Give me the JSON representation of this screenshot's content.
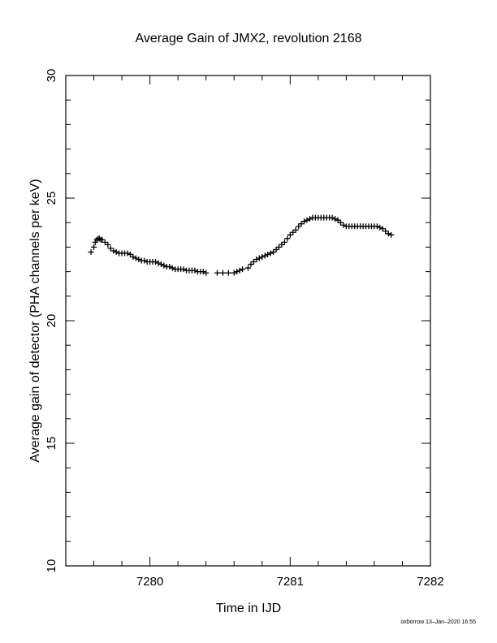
{
  "chart_data": {
    "type": "scatter",
    "title": "Average Gain of JMX2, revolution 2168",
    "xlabel": "Time in IJD",
    "ylabel": "Average gain of detector (PHA channels per keV)",
    "xlim": [
      7279.4,
      7282.0
    ],
    "ylim": [
      10,
      30
    ],
    "xticks": [
      7280,
      7281,
      7282
    ],
    "yticks": [
      10,
      15,
      20,
      25,
      30
    ],
    "x_minor_step": 0.2,
    "y_minor_step": 1,
    "grid": false,
    "legend": "none",
    "marker": "+",
    "color": "#000000",
    "x": [
      7279.58,
      7279.6,
      7279.61,
      7279.62,
      7279.63,
      7279.64,
      7279.65,
      7279.66,
      7279.68,
      7279.7,
      7279.72,
      7279.74,
      7279.76,
      7279.78,
      7279.8,
      7279.82,
      7279.84,
      7279.86,
      7279.88,
      7279.9,
      7279.92,
      7279.94,
      7279.96,
      7279.98,
      7280.0,
      7280.02,
      7280.04,
      7280.06,
      7280.08,
      7280.1,
      7280.12,
      7280.14,
      7280.16,
      7280.18,
      7280.2,
      7280.22,
      7280.24,
      7280.26,
      7280.28,
      7280.3,
      7280.32,
      7280.34,
      7280.36,
      7280.38,
      7280.4,
      7280.48,
      7280.52,
      7280.56,
      7280.6,
      7280.62,
      7280.64,
      7280.66,
      7280.7,
      7280.72,
      7280.74,
      7280.76,
      7280.78,
      7280.8,
      7280.82,
      7280.84,
      7280.86,
      7280.88,
      7280.9,
      7280.92,
      7280.94,
      7280.96,
      7280.98,
      7281.0,
      7281.02,
      7281.04,
      7281.06,
      7281.08,
      7281.1,
      7281.12,
      7281.14,
      7281.16,
      7281.18,
      7281.2,
      7281.22,
      7281.24,
      7281.26,
      7281.28,
      7281.3,
      7281.32,
      7281.34,
      7281.36,
      7281.38,
      7281.4,
      7281.42,
      7281.44,
      7281.46,
      7281.48,
      7281.5,
      7281.52,
      7281.54,
      7281.56,
      7281.58,
      7281.6,
      7281.62,
      7281.64,
      7281.66,
      7281.68,
      7281.7,
      7281.72
    ],
    "y": [
      22.8,
      23.0,
      23.2,
      23.3,
      23.35,
      23.35,
      23.3,
      23.3,
      23.2,
      23.1,
      22.95,
      22.85,
      22.8,
      22.75,
      22.75,
      22.75,
      22.75,
      22.7,
      22.6,
      22.55,
      22.5,
      22.45,
      22.45,
      22.4,
      22.4,
      22.4,
      22.4,
      22.35,
      22.3,
      22.25,
      22.2,
      22.2,
      22.15,
      22.1,
      22.1,
      22.1,
      22.1,
      22.05,
      22.05,
      22.05,
      22.05,
      22.0,
      22.0,
      22.0,
      21.95,
      21.95,
      21.95,
      21.95,
      21.95,
      22.0,
      22.05,
      22.1,
      22.15,
      22.3,
      22.4,
      22.5,
      22.55,
      22.6,
      22.65,
      22.7,
      22.75,
      22.8,
      22.9,
      23.0,
      23.1,
      23.2,
      23.35,
      23.5,
      23.6,
      23.7,
      23.85,
      23.95,
      24.05,
      24.1,
      24.15,
      24.2,
      24.2,
      24.2,
      24.2,
      24.2,
      24.2,
      24.2,
      24.2,
      24.15,
      24.1,
      24.0,
      23.9,
      23.85,
      23.85,
      23.85,
      23.85,
      23.85,
      23.85,
      23.85,
      23.85,
      23.85,
      23.85,
      23.85,
      23.85,
      23.8,
      23.75,
      23.65,
      23.55,
      23.5
    ]
  },
  "footer": {
    "stamp": "oxborrow 13–Jan–2020 16:55"
  }
}
